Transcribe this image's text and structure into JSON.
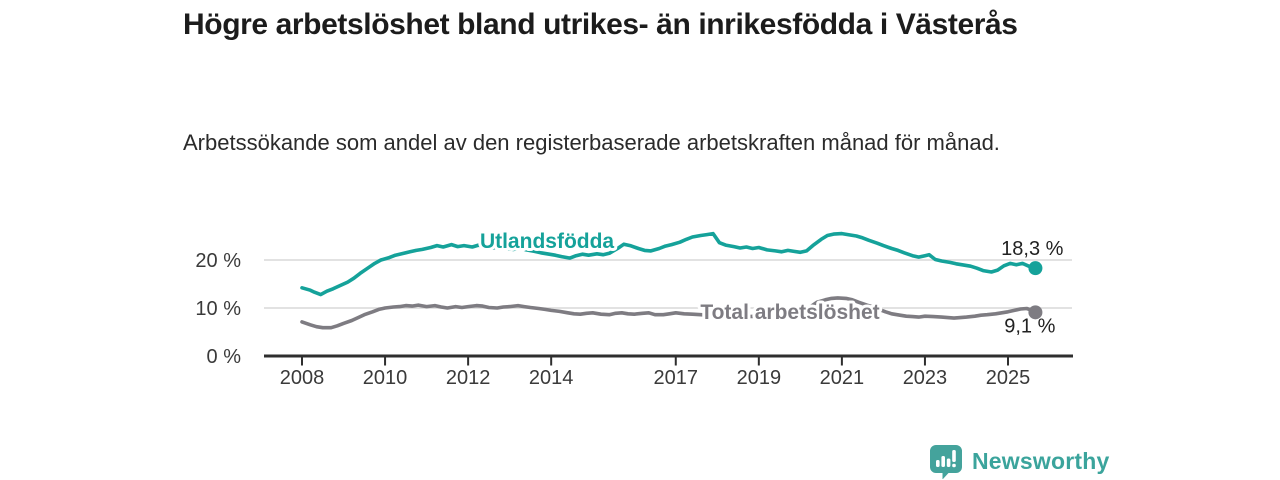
{
  "page": {
    "title": "Högre arbetslöshet bland utrikes- än inrikesfödda i Västerås",
    "subtitle": "Arbetssökande som andel av den registerbaserade arbetskraften månad för månad."
  },
  "footer": {
    "brand": "Newsworthy",
    "logo_icon": "bar-chart-speech-bubble-icon"
  },
  "colors": {
    "accent_teal": "#15a29a",
    "series_gray": "#7e7c82",
    "grid": "#d8d8d8",
    "axis": "#2e2e2e",
    "text_dark": "#1c1c1c",
    "brand_teal": "#3ba49c"
  },
  "chart_data": {
    "type": "line",
    "title": "Högre arbetslöshet bland utrikes- än inrikesfödda i Västerås",
    "subtitle": "Arbetssökande som andel av den registerbaserade arbetskraften månad för månad.",
    "xlabel": "",
    "ylabel": "",
    "grid": "horizontal-only",
    "legend_position": "inline-labels",
    "x_ticks": [
      2008,
      2010,
      2012,
      2014,
      2017,
      2019,
      2021,
      2023,
      2025
    ],
    "y_ticks": [
      {
        "value": 0,
        "label": "0 %"
      },
      {
        "value": 10,
        "label": "10 %"
      },
      {
        "value": 20,
        "label": "20 %"
      }
    ],
    "x_range_years": [
      2007.1,
      2026.5
    ],
    "y_range": [
      0,
      26.6
    ],
    "series": [
      {
        "name": "Utlandsfödda",
        "color": "#15a29a",
        "end_label": "18,3 %",
        "end_value": 18.3,
        "label_anchor": [
          2013.9,
          22.5
        ],
        "points": [
          [
            2008.0,
            14.2
          ],
          [
            2008.2,
            13.7
          ],
          [
            2008.3,
            13.3
          ],
          [
            2008.45,
            12.8
          ],
          [
            2008.6,
            13.5
          ],
          [
            2008.75,
            14.0
          ],
          [
            2008.9,
            14.6
          ],
          [
            2009.1,
            15.4
          ],
          [
            2009.25,
            16.2
          ],
          [
            2009.4,
            17.2
          ],
          [
            2009.6,
            18.4
          ],
          [
            2009.75,
            19.3
          ],
          [
            2009.9,
            20.0
          ],
          [
            2010.1,
            20.5
          ],
          [
            2010.25,
            21.0
          ],
          [
            2010.4,
            21.3
          ],
          [
            2010.6,
            21.7
          ],
          [
            2010.75,
            22.0
          ],
          [
            2010.9,
            22.2
          ],
          [
            2011.1,
            22.6
          ],
          [
            2011.25,
            23.0
          ],
          [
            2011.4,
            22.7
          ],
          [
            2011.6,
            23.2
          ],
          [
            2011.75,
            22.8
          ],
          [
            2011.9,
            23.0
          ],
          [
            2012.1,
            22.7
          ],
          [
            2012.25,
            23.1
          ],
          [
            2012.4,
            22.8
          ],
          [
            2012.6,
            22.5
          ],
          [
            2012.75,
            22.8
          ],
          [
            2012.9,
            22.4
          ],
          [
            2013.1,
            22.2
          ],
          [
            2013.25,
            22.5
          ],
          [
            2013.4,
            22.1
          ],
          [
            2013.6,
            21.8
          ],
          [
            2013.75,
            21.5
          ],
          [
            2013.9,
            21.3
          ],
          [
            2014.1,
            21.0
          ],
          [
            2014.25,
            20.7
          ],
          [
            2014.45,
            20.4
          ],
          [
            2014.6,
            20.9
          ],
          [
            2014.75,
            21.2
          ],
          [
            2014.9,
            21.0
          ],
          [
            2015.1,
            21.3
          ],
          [
            2015.25,
            21.1
          ],
          [
            2015.4,
            21.4
          ],
          [
            2015.6,
            22.4
          ],
          [
            2015.75,
            23.3
          ],
          [
            2015.9,
            23.0
          ],
          [
            2016.1,
            22.4
          ],
          [
            2016.25,
            22.0
          ],
          [
            2016.4,
            21.9
          ],
          [
            2016.6,
            22.4
          ],
          [
            2016.75,
            22.9
          ],
          [
            2016.9,
            23.2
          ],
          [
            2017.1,
            23.7
          ],
          [
            2017.25,
            24.3
          ],
          [
            2017.4,
            24.8
          ],
          [
            2017.6,
            25.1
          ],
          [
            2017.75,
            25.3
          ],
          [
            2017.9,
            25.5
          ],
          [
            2018.05,
            23.6
          ],
          [
            2018.2,
            23.1
          ],
          [
            2018.4,
            22.8
          ],
          [
            2018.55,
            22.5
          ],
          [
            2018.7,
            22.7
          ],
          [
            2018.85,
            22.4
          ],
          [
            2019.0,
            22.6
          ],
          [
            2019.2,
            22.1
          ],
          [
            2019.4,
            21.9
          ],
          [
            2019.55,
            21.7
          ],
          [
            2019.7,
            22.0
          ],
          [
            2019.85,
            21.8
          ],
          [
            2020.0,
            21.6
          ],
          [
            2020.15,
            21.9
          ],
          [
            2020.3,
            23.0
          ],
          [
            2020.5,
            24.3
          ],
          [
            2020.65,
            25.1
          ],
          [
            2020.8,
            25.4
          ],
          [
            2021.0,
            25.5
          ],
          [
            2021.2,
            25.2
          ],
          [
            2021.35,
            25.0
          ],
          [
            2021.5,
            24.6
          ],
          [
            2021.65,
            24.1
          ],
          [
            2021.85,
            23.5
          ],
          [
            2022.0,
            23.0
          ],
          [
            2022.2,
            22.4
          ],
          [
            2022.35,
            22.0
          ],
          [
            2022.5,
            21.5
          ],
          [
            2022.7,
            20.9
          ],
          [
            2022.85,
            20.6
          ],
          [
            2023.0,
            20.9
          ],
          [
            2023.1,
            21.1
          ],
          [
            2023.25,
            20.1
          ],
          [
            2023.4,
            19.8
          ],
          [
            2023.6,
            19.5
          ],
          [
            2023.75,
            19.2
          ],
          [
            2023.9,
            19.0
          ],
          [
            2024.1,
            18.7
          ],
          [
            2024.25,
            18.3
          ],
          [
            2024.4,
            17.8
          ],
          [
            2024.6,
            17.5
          ],
          [
            2024.75,
            17.9
          ],
          [
            2024.9,
            18.8
          ],
          [
            2025.05,
            19.3
          ],
          [
            2025.2,
            19.0
          ],
          [
            2025.35,
            19.3
          ],
          [
            2025.5,
            18.7
          ],
          [
            2025.66,
            18.3
          ]
        ]
      },
      {
        "name": "Total arbetslöshet",
        "color": "#7e7c82",
        "end_label": "9,1 %",
        "end_value": 9.1,
        "label_anchor": [
          2019.75,
          7.7
        ],
        "points": [
          [
            2008.0,
            7.1
          ],
          [
            2008.2,
            6.5
          ],
          [
            2008.35,
            6.1
          ],
          [
            2008.5,
            5.9
          ],
          [
            2008.7,
            5.9
          ],
          [
            2008.85,
            6.3
          ],
          [
            2009.0,
            6.8
          ],
          [
            2009.2,
            7.4
          ],
          [
            2009.35,
            8.0
          ],
          [
            2009.5,
            8.6
          ],
          [
            2009.7,
            9.2
          ],
          [
            2009.85,
            9.7
          ],
          [
            2010.0,
            10.0
          ],
          [
            2010.2,
            10.2
          ],
          [
            2010.35,
            10.3
          ],
          [
            2010.5,
            10.5
          ],
          [
            2010.65,
            10.4
          ],
          [
            2010.8,
            10.6
          ],
          [
            2011.0,
            10.3
          ],
          [
            2011.2,
            10.5
          ],
          [
            2011.35,
            10.2
          ],
          [
            2011.5,
            10.0
          ],
          [
            2011.7,
            10.3
          ],
          [
            2011.85,
            10.1
          ],
          [
            2012.0,
            10.3
          ],
          [
            2012.2,
            10.5
          ],
          [
            2012.35,
            10.4
          ],
          [
            2012.5,
            10.1
          ],
          [
            2012.7,
            10.0
          ],
          [
            2012.85,
            10.2
          ],
          [
            2013.0,
            10.3
          ],
          [
            2013.2,
            10.5
          ],
          [
            2013.35,
            10.3
          ],
          [
            2013.5,
            10.1
          ],
          [
            2013.7,
            9.9
          ],
          [
            2013.85,
            9.7
          ],
          [
            2014.0,
            9.5
          ],
          [
            2014.2,
            9.3
          ],
          [
            2014.4,
            9.0
          ],
          [
            2014.55,
            8.8
          ],
          [
            2014.7,
            8.7
          ],
          [
            2014.85,
            8.9
          ],
          [
            2015.0,
            9.0
          ],
          [
            2015.2,
            8.7
          ],
          [
            2015.4,
            8.6
          ],
          [
            2015.55,
            8.9
          ],
          [
            2015.7,
            9.0
          ],
          [
            2015.85,
            8.8
          ],
          [
            2016.0,
            8.7
          ],
          [
            2016.2,
            8.9
          ],
          [
            2016.35,
            9.0
          ],
          [
            2016.5,
            8.6
          ],
          [
            2016.7,
            8.6
          ],
          [
            2016.85,
            8.8
          ],
          [
            2017.0,
            9.0
          ],
          [
            2017.2,
            8.8
          ],
          [
            2017.4,
            8.7
          ],
          [
            2017.6,
            8.6
          ],
          [
            2017.8,
            8.5
          ],
          [
            2018.0,
            8.3
          ],
          [
            2018.25,
            8.2
          ],
          [
            2018.5,
            8.1
          ],
          [
            2018.75,
            8.2
          ],
          [
            2019.0,
            8.3
          ],
          [
            2019.25,
            8.5
          ],
          [
            2019.5,
            8.7
          ],
          [
            2019.75,
            8.9
          ],
          [
            2020.0,
            9.2
          ],
          [
            2020.2,
            10.0
          ],
          [
            2020.4,
            11.2
          ],
          [
            2020.6,
            11.7
          ],
          [
            2020.75,
            12.0
          ],
          [
            2020.9,
            12.1
          ],
          [
            2021.1,
            12.0
          ],
          [
            2021.25,
            11.7
          ],
          [
            2021.4,
            11.2
          ],
          [
            2021.6,
            10.6
          ],
          [
            2021.75,
            10.2
          ],
          [
            2021.9,
            9.7
          ],
          [
            2022.05,
            9.2
          ],
          [
            2022.2,
            8.8
          ],
          [
            2022.4,
            8.5
          ],
          [
            2022.55,
            8.3
          ],
          [
            2022.7,
            8.2
          ],
          [
            2022.85,
            8.1
          ],
          [
            2023.0,
            8.3
          ],
          [
            2023.2,
            8.2
          ],
          [
            2023.4,
            8.1
          ],
          [
            2023.55,
            8.0
          ],
          [
            2023.7,
            7.9
          ],
          [
            2023.85,
            8.0
          ],
          [
            2024.0,
            8.1
          ],
          [
            2024.2,
            8.3
          ],
          [
            2024.35,
            8.5
          ],
          [
            2024.5,
            8.6
          ],
          [
            2024.7,
            8.8
          ],
          [
            2024.85,
            9.0
          ],
          [
            2025.0,
            9.2
          ],
          [
            2025.15,
            9.5
          ],
          [
            2025.3,
            9.8
          ],
          [
            2025.45,
            9.9
          ],
          [
            2025.55,
            9.6
          ],
          [
            2025.66,
            9.1
          ]
        ]
      }
    ]
  }
}
